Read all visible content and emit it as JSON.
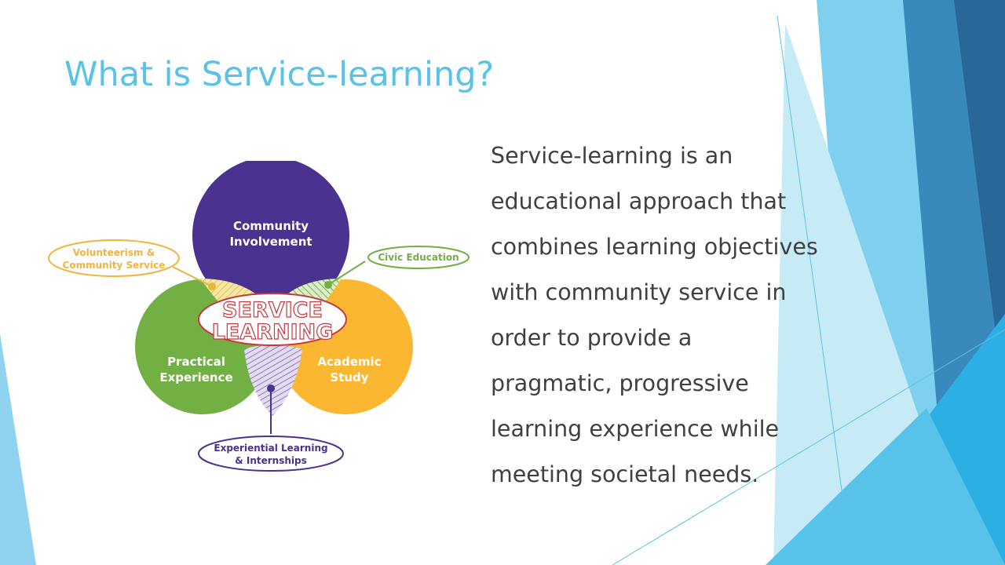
{
  "slide": {
    "title": "What is Service-learning?",
    "body_lines": [
      "Service-learning is an",
      "educational approach that",
      "combines learning objectives",
      "with community service in",
      "order to provide a",
      "pragmatic, progressive",
      "learning experience while",
      "meeting societal needs."
    ]
  },
  "diagram": {
    "center_line1": "SERVICE",
    "center_line2": "LEARNING",
    "top_circle": [
      "Community",
      "Involvement"
    ],
    "left_circle": [
      "Practical",
      "Experience"
    ],
    "right_circle": [
      "Academic",
      "Study"
    ],
    "callout_left": [
      "Volunteerism &",
      "Community Service"
    ],
    "callout_right": "Civic Education",
    "callout_bottom": [
      "Experiential Learning",
      "& Internships"
    ]
  },
  "colors": {
    "title": "#5ac2e7",
    "body_text": "#404040",
    "circle_top": "#4b3190",
    "circle_left": "#72b043",
    "circle_right": "#fbb731",
    "center_label": "#c4393f"
  }
}
